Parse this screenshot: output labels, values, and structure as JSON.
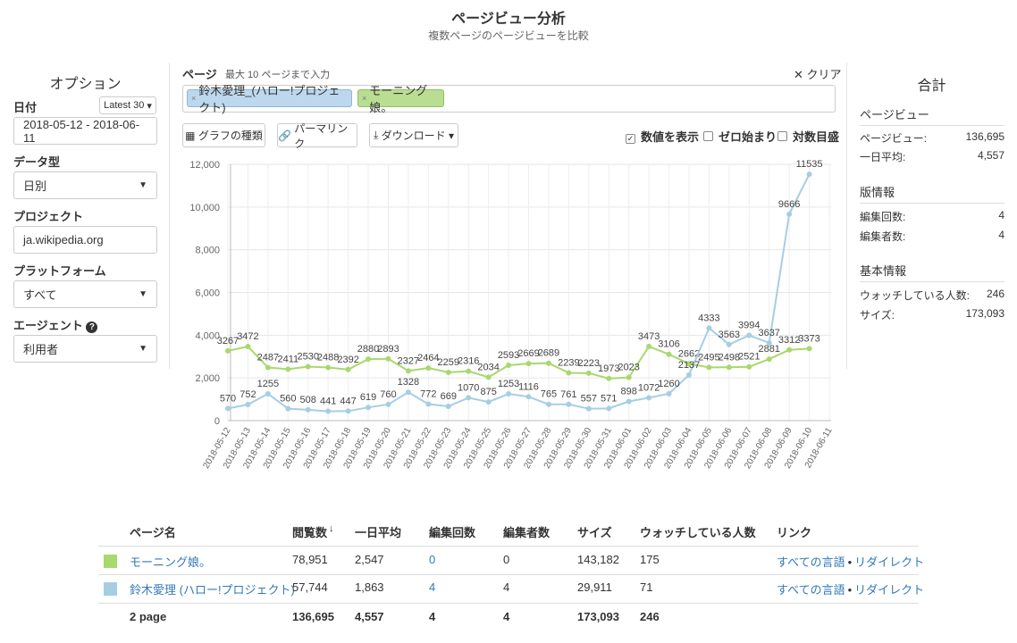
{
  "header": {
    "title": "ページビュー分析",
    "subtitle": "複数ページのページビューを比較"
  },
  "options": {
    "title": "オプション",
    "date_label": "日付",
    "date_preset": "Latest 30",
    "date_range": "2018-05-12 - 2018-06-11",
    "data_type_label": "データ型",
    "data_type": "日別",
    "project_label": "プロジェクト",
    "project": "ja.wikipedia.org",
    "platform_label": "プラットフォーム",
    "platform": "すべて",
    "agent_label": "エージェント",
    "agent": "利用者"
  },
  "pages": {
    "label": "ページ",
    "hint": "最大 10 ページまで入力",
    "clear": "クリア",
    "tags": [
      "鈴木愛理_(ハロー!プロジェクト)",
      "モーニング娘。"
    ]
  },
  "toolbar": {
    "chart_type": "グラフの種類",
    "permalink": "パーマリンク",
    "download": "ダウンロード",
    "show_values": "数値を表示",
    "begin_zero": "ゼロ始まり",
    "log_scale": "対数目盛"
  },
  "summary": {
    "title": "合計",
    "sections": [
      {
        "heading": "ページビュー",
        "rows": [
          [
            "ページビュー:",
            "136,695"
          ],
          [
            "一日平均:",
            "4,557"
          ]
        ]
      },
      {
        "heading": "版情報",
        "rows": [
          [
            "編集回数:",
            "4"
          ],
          [
            "編集者数:",
            "4"
          ]
        ]
      },
      {
        "heading": "基本情報",
        "rows": [
          [
            "ウォッチしている人数:",
            "246"
          ],
          [
            "サイズ:",
            "173,093"
          ]
        ]
      }
    ]
  },
  "chart_data": {
    "type": "line",
    "show_values": true,
    "grid": true,
    "categories": [
      "2018-05-12",
      "2018-05-13",
      "2018-05-14",
      "2018-05-15",
      "2018-05-16",
      "2018-05-17",
      "2018-05-18",
      "2018-05-19",
      "2018-05-20",
      "2018-05-21",
      "2018-05-22",
      "2018-05-23",
      "2018-05-24",
      "2018-05-25",
      "2018-05-26",
      "2018-05-27",
      "2018-05-28",
      "2018-05-29",
      "2018-05-30",
      "2018-05-31",
      "2018-06-01",
      "2018-06-02",
      "2018-06-03",
      "2018-06-04",
      "2018-06-05",
      "2018-06-06",
      "2018-06-07",
      "2018-06-08",
      "2018-06-09",
      "2018-06-10",
      "2018-06-11"
    ],
    "series": [
      {
        "color": "#a9d86e",
        "values": [
          3267,
          3472,
          2487,
          2411,
          2530,
          2488,
          2392,
          2880,
          2893,
          2327,
          2464,
          2259,
          2316,
          2034,
          2593,
          2669,
          2689,
          2239,
          2223,
          1973,
          2023,
          3473,
          3106,
          2662,
          2495,
          2498,
          2521,
          2881,
          3312,
          3373,
          null
        ]
      },
      {
        "color": "#a6cee3",
        "values": [
          570,
          752,
          1255,
          560,
          508,
          441,
          447,
          619,
          760,
          1328,
          772,
          669,
          1070,
          875,
          1253,
          1116,
          765,
          761,
          557,
          571,
          898,
          1072,
          1260,
          2137,
          4333,
          3563,
          3994,
          3637,
          9666,
          11535,
          null
        ]
      }
    ],
    "ylim": [
      0,
      12000
    ],
    "yticks": [
      0,
      {
        "value": 2000,
        "label": "2,000"
      },
      {
        "value": 4000,
        "label": "4,000"
      },
      {
        "value": 6000,
        "label": "6,000"
      },
      {
        "value": 8000,
        "label": "8,000"
      },
      {
        "value": 10000,
        "label": "10,000"
      },
      {
        "value": 12000,
        "label": "12,000"
      }
    ]
  },
  "table": {
    "headers": [
      "ページ名",
      "閲覧数",
      "一日平均",
      "編集回数",
      "編集者数",
      "サイズ",
      "ウォッチしている人数",
      "リンク"
    ],
    "rows": [
      {
        "cells": [
          "モーニング娘。",
          "78,951",
          "2,547",
          "0",
          "0",
          "143,182",
          "175"
        ],
        "links": [
          "すべての言語",
          "リダイレクト"
        ]
      },
      {
        "cells": [
          "鈴木愛理 (ハロー!プロジェクト)",
          "57,744",
          "1,863",
          "4",
          "4",
          "29,911",
          "71"
        ],
        "links": [
          "すべての言語",
          "リダイレクト"
        ]
      }
    ],
    "link_separator": "•",
    "footer": [
      "2 page",
      "136,695",
      "4,557",
      "4",
      "4",
      "173,093",
      "246"
    ]
  }
}
